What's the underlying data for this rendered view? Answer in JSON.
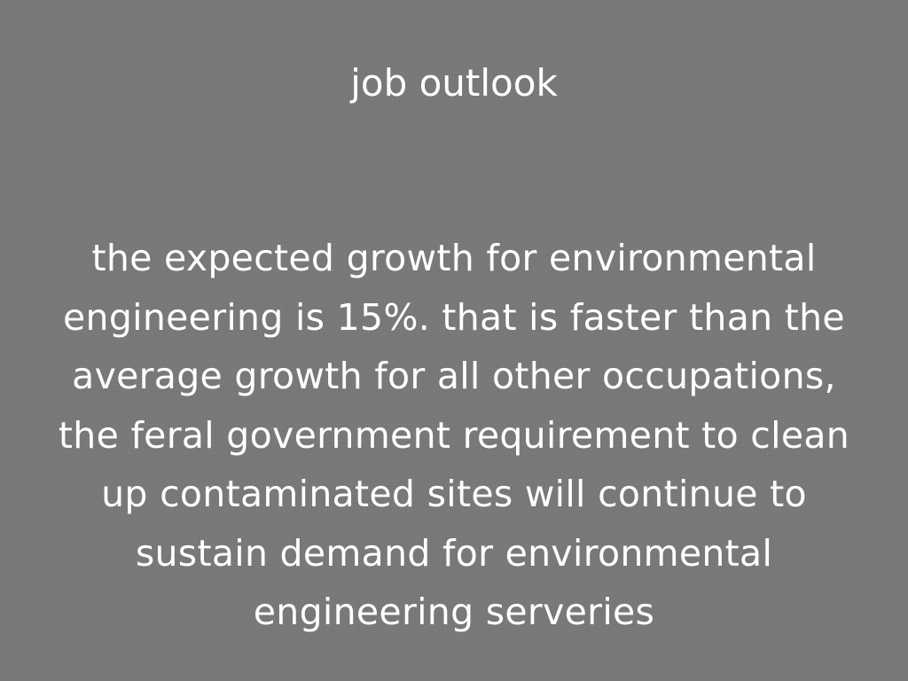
{
  "slide": {
    "title": "job outlook",
    "body_lines": [
      "the expected growth for environmental",
      "engineering is 15%. that is faster than the",
      "average growth for all other occupations,",
      "the feral government requirement to clean",
      "up contaminated sites will continue to",
      "sustain demand for environmental",
      "engineering serveries"
    ],
    "background_color": "#777776",
    "text_color": "#ffffff"
  }
}
